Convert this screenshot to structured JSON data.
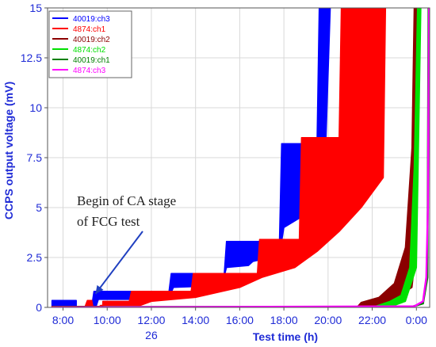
{
  "chart_data": {
    "type": "line",
    "title": "",
    "xlabel": "Test time (h)",
    "ylabel": "CCPS output voltage (mV)",
    "ylim": [
      0,
      15
    ],
    "y_ticks": [
      0,
      2.5,
      5,
      7.5,
      10,
      12.5,
      15
    ],
    "y_tick_labels": [
      "0",
      "2.5",
      "5",
      "7.5",
      "10",
      "12.5",
      "15"
    ],
    "x_ticks": [
      8,
      10,
      12,
      14,
      16,
      18,
      20,
      22,
      24
    ],
    "x_tick_labels": [
      "8:00",
      "10:00",
      "12:00",
      "14:00",
      "16:00",
      "18:00",
      "20:00",
      "22:00",
      "0:00"
    ],
    "x_sub_label": {
      "x": 12,
      "text": "26"
    },
    "xlim": [
      7.3,
      24.6
    ],
    "grid": true,
    "legend_position": "top-left",
    "annotation": {
      "lines": [
        "Begin of CA stage",
        "of FCG test"
      ],
      "points_to": {
        "x": 9.4,
        "y": 0.6
      }
    },
    "series": [
      {
        "name": "40019:ch3",
        "color": "#0000ff",
        "style": "band",
        "lower": [
          [
            7.5,
            0.05
          ],
          [
            9.5,
            0.05
          ],
          [
            9.6,
            0.4
          ],
          [
            11.8,
            0.4
          ],
          [
            11.9,
            0.5
          ],
          [
            12.8,
            0.5
          ],
          [
            13.0,
            1.0
          ],
          [
            15.2,
            1.1
          ],
          [
            15.4,
            2.0
          ],
          [
            16.4,
            2.1
          ],
          [
            16.6,
            2.3
          ],
          [
            17.8,
            2.6
          ],
          [
            18.0,
            4.0
          ],
          [
            19.5,
            5.0
          ],
          [
            19.9,
            8.3
          ]
        ],
        "upper": [
          [
            7.5,
            0.35
          ],
          [
            8.6,
            0.35
          ],
          [
            8.6,
            0.05
          ],
          [
            9.3,
            0.05
          ],
          [
            9.4,
            0.8
          ],
          [
            12.8,
            0.8
          ],
          [
            12.9,
            1.7
          ],
          [
            15.3,
            1.7
          ],
          [
            15.4,
            3.3
          ],
          [
            17.8,
            3.3
          ],
          [
            17.9,
            8.2
          ],
          [
            19.5,
            8.2
          ],
          [
            19.6,
            15
          ],
          [
            20.1,
            15
          ]
        ]
      },
      {
        "name": "4874:ch1",
        "color": "#ff0000",
        "style": "band",
        "lower": [
          [
            7.5,
            0.0
          ],
          [
            9.6,
            0.0
          ],
          [
            9.7,
            0.1
          ],
          [
            11.5,
            0.1
          ],
          [
            12.0,
            0.3
          ],
          [
            14.0,
            0.5
          ],
          [
            16.0,
            1.0
          ],
          [
            17.0,
            1.5
          ],
          [
            18.5,
            2.0
          ],
          [
            19.5,
            2.8
          ],
          [
            20.5,
            3.8
          ],
          [
            21.5,
            5.0
          ],
          [
            22.5,
            6.5
          ]
        ],
        "upper": [
          [
            7.5,
            0.05
          ],
          [
            9.0,
            0.05
          ],
          [
            9.1,
            0.35
          ],
          [
            9.3,
            0.35
          ],
          [
            9.35,
            0.05
          ],
          [
            9.8,
            0.05
          ],
          [
            9.8,
            0.3
          ],
          [
            11.0,
            0.3
          ],
          [
            11.1,
            0.8
          ],
          [
            13.8,
            0.8
          ],
          [
            13.9,
            1.7
          ],
          [
            16.8,
            1.7
          ],
          [
            16.9,
            3.4
          ],
          [
            18.7,
            3.4
          ],
          [
            18.8,
            8.5
          ],
          [
            20.5,
            8.5
          ],
          [
            20.6,
            15
          ],
          [
            22.6,
            15
          ]
        ]
      },
      {
        "name": "40019:ch2",
        "color": "#8b0000",
        "style": "band",
        "lower": [
          [
            7.5,
            0.0
          ],
          [
            21.6,
            0.0
          ],
          [
            22.0,
            0.05
          ],
          [
            23.0,
            0.4
          ],
          [
            23.8,
            1.0
          ],
          [
            24.0,
            3.0
          ],
          [
            24.1,
            15
          ]
        ],
        "upper": [
          [
            7.5,
            0.0
          ],
          [
            21.3,
            0.0
          ],
          [
            21.5,
            0.25
          ],
          [
            22.3,
            0.5
          ],
          [
            22.6,
            0.8
          ],
          [
            23.0,
            1.2
          ],
          [
            23.5,
            3.0
          ],
          [
            23.8,
            8.0
          ],
          [
            23.9,
            15
          ],
          [
            24.1,
            15
          ]
        ]
      },
      {
        "name": "4874:ch2",
        "color": "#00e000",
        "style": "band",
        "lower": [
          [
            7.5,
            0.0
          ],
          [
            22.3,
            0.0
          ],
          [
            23.0,
            0.1
          ],
          [
            23.5,
            0.3
          ],
          [
            24.0,
            2.0
          ],
          [
            24.2,
            15
          ]
        ],
        "upper": [
          [
            7.5,
            0.0
          ],
          [
            22.0,
            0.0
          ],
          [
            22.8,
            0.3
          ],
          [
            23.3,
            0.6
          ],
          [
            23.7,
            2.0
          ],
          [
            23.9,
            7.0
          ],
          [
            24.05,
            15
          ],
          [
            24.2,
            15
          ]
        ]
      },
      {
        "name": "40019:ch1",
        "color": "#008000",
        "style": "line",
        "points": [
          [
            7.5,
            0.02
          ],
          [
            23.8,
            0.03
          ],
          [
            24.3,
            0.2
          ],
          [
            24.5,
            1.5
          ],
          [
            24.55,
            15
          ]
        ]
      },
      {
        "name": "4874:ch3",
        "color": "#ff00ff",
        "style": "line",
        "points": [
          [
            7.5,
            0.0
          ],
          [
            23.9,
            0.05
          ],
          [
            24.3,
            0.3
          ],
          [
            24.45,
            1.5
          ],
          [
            24.52,
            5.0
          ],
          [
            24.57,
            15
          ]
        ]
      }
    ]
  }
}
